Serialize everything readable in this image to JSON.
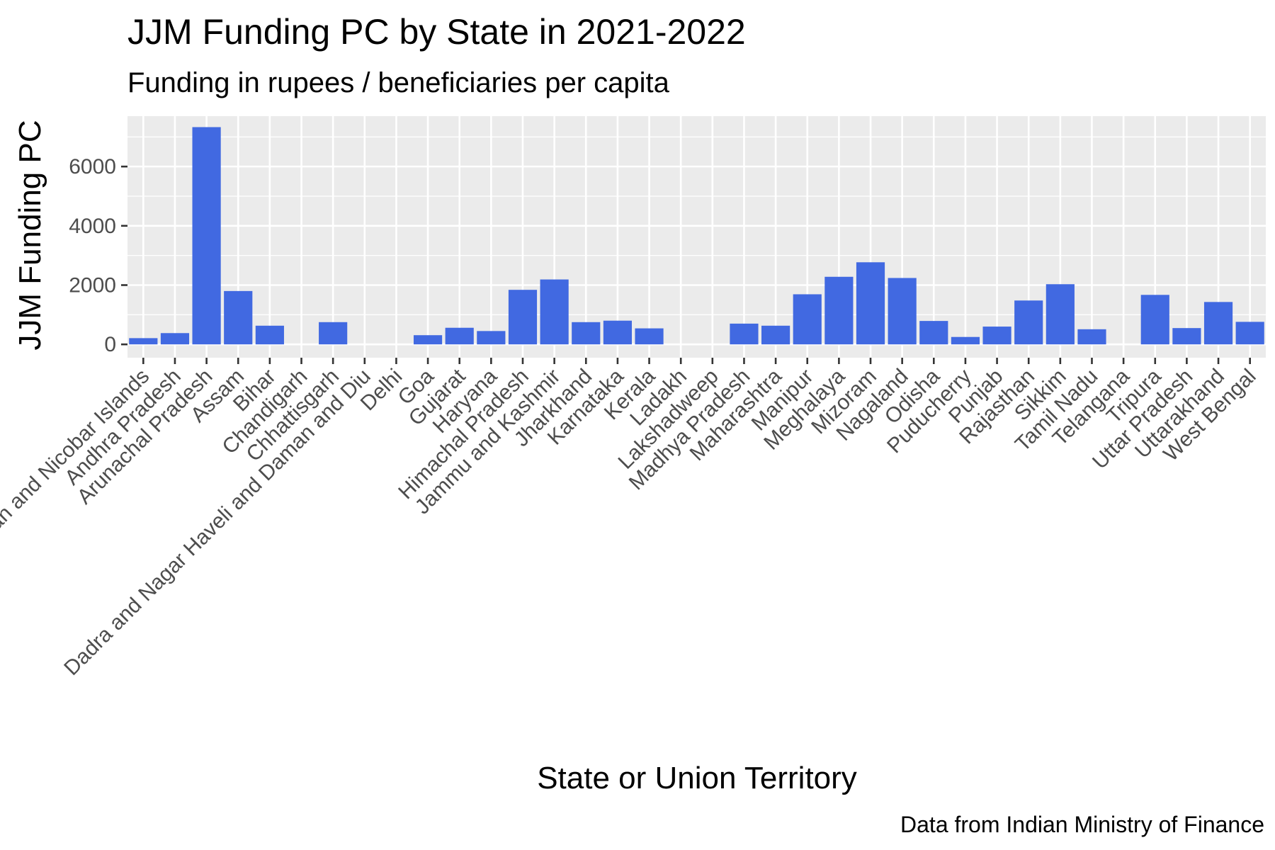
{
  "title": "JJM Funding PC by State in 2021-2022",
  "subtitle": "Funding in rupees / beneficiaries per capita",
  "caption": "Data from Indian Ministry of Finance",
  "colors": {
    "bar": "#4169E1",
    "panel": "#EBEBEB",
    "grid": "#FFFFFF",
    "tick_text": "#4D4D4D"
  },
  "chart_data": {
    "type": "bar",
    "title": "JJM Funding PC by State in 2021-2022",
    "subtitle": "Funding in rupees / beneficiaries per capita",
    "xlabel": "State or Union Territory",
    "ylabel": "JJM Funding PC",
    "ylim": [
      -450,
      7700
    ],
    "yticks": [
      0,
      2000,
      4000,
      6000
    ],
    "grid": true,
    "categories": [
      "Andaman and Nicobar Islands",
      "Andhra Pradesh",
      "Arunachal Pradesh",
      "Assam",
      "Bihar",
      "Chandigarh",
      "Chhattisgarh",
      "Dadra and Nagar Haveli and Daman and Diu",
      "Delhi",
      "Goa",
      "Gujarat",
      "Haryana",
      "Himachal Pradesh",
      "Jammu and Kashmir",
      "Jharkhand",
      "Karnataka",
      "Kerala",
      "Ladakh",
      "Lakshadweep",
      "Madhya Pradesh",
      "Maharashtra",
      "Manipur",
      "Meghalaya",
      "Mizoram",
      "Nagaland",
      "Odisha",
      "Puducherry",
      "Punjab",
      "Rajasthan",
      "Sikkim",
      "Tamil Nadu",
      "Telangana",
      "Tripura",
      "Uttar Pradesh",
      "Uttarakhand",
      "West Bengal"
    ],
    "values": [
      210,
      380,
      7330,
      1800,
      630,
      0,
      750,
      0,
      0,
      310,
      560,
      450,
      1840,
      2190,
      750,
      800,
      540,
      0,
      0,
      700,
      630,
      1690,
      2280,
      2770,
      2240,
      790,
      250,
      600,
      1480,
      2030,
      510,
      0,
      1670,
      550,
      1430,
      760
    ]
  }
}
